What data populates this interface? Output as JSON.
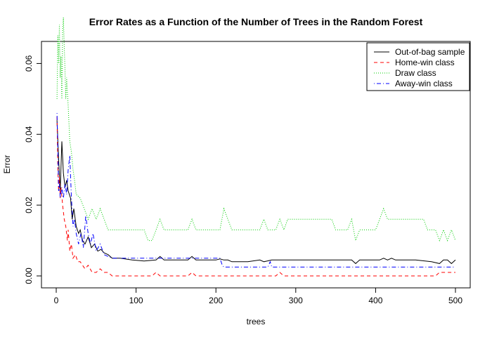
{
  "chart_data": {
    "type": "line",
    "title": "Error Rates as a Function of the Number of Trees in the Random Forest",
    "xlabel": "trees",
    "ylabel": "Error",
    "xlim": [
      0,
      500
    ],
    "ylim": [
      0,
      0.07
    ],
    "x_ticks": [
      0,
      100,
      200,
      300,
      400,
      500
    ],
    "x_tick_labels": [
      "0",
      "100",
      "200",
      "300",
      "400",
      "500"
    ],
    "y_ticks": [
      0,
      0.02,
      0.04,
      0.06
    ],
    "y_tick_labels": [
      "0.00",
      "0.02",
      "0.04",
      "0.06"
    ],
    "grid": false,
    "legend_position": "top-right",
    "series": [
      {
        "name": "Out-of-bag sample",
        "color": "#000000",
        "linestyle": "solid",
        "points": [
          [
            1,
            0.044
          ],
          [
            3,
            0.033
          ],
          [
            5,
            0.024
          ],
          [
            7,
            0.038
          ],
          [
            9,
            0.029
          ],
          [
            11,
            0.025
          ],
          [
            13,
            0.027
          ],
          [
            15,
            0.024
          ],
          [
            18,
            0.022
          ],
          [
            20,
            0.016
          ],
          [
            22,
            0.019
          ],
          [
            25,
            0.014
          ],
          [
            28,
            0.012
          ],
          [
            30,
            0.013
          ],
          [
            33,
            0.01
          ],
          [
            36,
            0.009
          ],
          [
            40,
            0.011
          ],
          [
            44,
            0.008
          ],
          [
            48,
            0.009
          ],
          [
            52,
            0.007
          ],
          [
            56,
            0.0075
          ],
          [
            60,
            0.0065
          ],
          [
            65,
            0.006
          ],
          [
            70,
            0.005
          ],
          [
            80,
            0.005
          ],
          [
            95,
            0.0045
          ],
          [
            110,
            0.0042
          ],
          [
            125,
            0.0045
          ],
          [
            130,
            0.0055
          ],
          [
            135,
            0.0045
          ],
          [
            150,
            0.0045
          ],
          [
            165,
            0.0045
          ],
          [
            170,
            0.0055
          ],
          [
            175,
            0.0045
          ],
          [
            200,
            0.0045
          ],
          [
            205,
            0.0048
          ],
          [
            210,
            0.0045
          ],
          [
            215,
            0.0045
          ],
          [
            220,
            0.004
          ],
          [
            240,
            0.004
          ],
          [
            255,
            0.0045
          ],
          [
            260,
            0.004
          ],
          [
            270,
            0.0045
          ],
          [
            280,
            0.0045
          ],
          [
            300,
            0.0045
          ],
          [
            340,
            0.0045
          ],
          [
            370,
            0.0045
          ],
          [
            375,
            0.0035
          ],
          [
            380,
            0.0045
          ],
          [
            405,
            0.0045
          ],
          [
            410,
            0.005
          ],
          [
            415,
            0.0045
          ],
          [
            420,
            0.005
          ],
          [
            425,
            0.0045
          ],
          [
            450,
            0.0045
          ],
          [
            470,
            0.004
          ],
          [
            480,
            0.0035
          ],
          [
            485,
            0.0045
          ],
          [
            490,
            0.0045
          ],
          [
            495,
            0.0035
          ],
          [
            500,
            0.0045
          ]
        ]
      },
      {
        "name": "Home-win class",
        "color": "#ff0000",
        "linestyle": "dashed",
        "points": [
          [
            1,
            0.045
          ],
          [
            2,
            0.03
          ],
          [
            3,
            0.024
          ],
          [
            4,
            0.028
          ],
          [
            5,
            0.022
          ],
          [
            6,
            0.025
          ],
          [
            8,
            0.02
          ],
          [
            10,
            0.016
          ],
          [
            12,
            0.014
          ],
          [
            14,
            0.01
          ],
          [
            15,
            0.013
          ],
          [
            17,
            0.007
          ],
          [
            19,
            0.009
          ],
          [
            21,
            0.005
          ],
          [
            24,
            0.006
          ],
          [
            27,
            0.004
          ],
          [
            30,
            0.004
          ],
          [
            33,
            0.003
          ],
          [
            36,
            0.002
          ],
          [
            40,
            0.003
          ],
          [
            45,
            0.001
          ],
          [
            50,
            0.001
          ],
          [
            55,
            0.002
          ],
          [
            60,
            0.001
          ],
          [
            65,
            0.001
          ],
          [
            70,
            0.0
          ],
          [
            120,
            0.0
          ],
          [
            125,
            0.001
          ],
          [
            130,
            0.0
          ],
          [
            165,
            0.0
          ],
          [
            170,
            0.001
          ],
          [
            175,
            0.0
          ],
          [
            275,
            0.0
          ],
          [
            280,
            0.001
          ],
          [
            285,
            0.0
          ],
          [
            475,
            0.0
          ],
          [
            480,
            0.001
          ],
          [
            500,
            0.001
          ]
        ]
      },
      {
        "name": "Draw class",
        "color": "#00cc00",
        "linestyle": "dotted",
        "points": [
          [
            1,
            0.05
          ],
          [
            2,
            0.068
          ],
          [
            3,
            0.06
          ],
          [
            4,
            0.071
          ],
          [
            5,
            0.056
          ],
          [
            6,
            0.062
          ],
          [
            7,
            0.05
          ],
          [
            8,
            0.069
          ],
          [
            9,
            0.073
          ],
          [
            10,
            0.065
          ],
          [
            11,
            0.058
          ],
          [
            12,
            0.05
          ],
          [
            13,
            0.056
          ],
          [
            15,
            0.048
          ],
          [
            17,
            0.038
          ],
          [
            19,
            0.035
          ],
          [
            21,
            0.03
          ],
          [
            23,
            0.027
          ],
          [
            25,
            0.023
          ],
          [
            30,
            0.022
          ],
          [
            35,
            0.019
          ],
          [
            40,
            0.016
          ],
          [
            45,
            0.019
          ],
          [
            50,
            0.016
          ],
          [
            55,
            0.019
          ],
          [
            60,
            0.016
          ],
          [
            65,
            0.013
          ],
          [
            110,
            0.013
          ],
          [
            115,
            0.01
          ],
          [
            120,
            0.01
          ],
          [
            125,
            0.013
          ],
          [
            130,
            0.016
          ],
          [
            135,
            0.013
          ],
          [
            165,
            0.013
          ],
          [
            170,
            0.016
          ],
          [
            175,
            0.013
          ],
          [
            205,
            0.013
          ],
          [
            210,
            0.019
          ],
          [
            215,
            0.016
          ],
          [
            220,
            0.013
          ],
          [
            255,
            0.013
          ],
          [
            260,
            0.016
          ],
          [
            265,
            0.013
          ],
          [
            275,
            0.013
          ],
          [
            280,
            0.016
          ],
          [
            285,
            0.013
          ],
          [
            290,
            0.016
          ],
          [
            345,
            0.016
          ],
          [
            350,
            0.013
          ],
          [
            365,
            0.013
          ],
          [
            370,
            0.016
          ],
          [
            375,
            0.01
          ],
          [
            380,
            0.013
          ],
          [
            400,
            0.013
          ],
          [
            405,
            0.016
          ],
          [
            410,
            0.019
          ],
          [
            415,
            0.016
          ],
          [
            460,
            0.016
          ],
          [
            465,
            0.013
          ],
          [
            475,
            0.013
          ],
          [
            480,
            0.01
          ],
          [
            485,
            0.013
          ],
          [
            490,
            0.01
          ],
          [
            495,
            0.013
          ],
          [
            500,
            0.01
          ]
        ]
      },
      {
        "name": "Away-win class",
        "color": "#0000ff",
        "linestyle": "dotdash",
        "points": [
          [
            1,
            0.046
          ],
          [
            2,
            0.036
          ],
          [
            3,
            0.024
          ],
          [
            4,
            0.026
          ],
          [
            5,
            0.022
          ],
          [
            7,
            0.025
          ],
          [
            9,
            0.022
          ],
          [
            11,
            0.026
          ],
          [
            13,
            0.023
          ],
          [
            15,
            0.03
          ],
          [
            17,
            0.034
          ],
          [
            19,
            0.022
          ],
          [
            21,
            0.014
          ],
          [
            23,
            0.016
          ],
          [
            25,
            0.012
          ],
          [
            28,
            0.009
          ],
          [
            31,
            0.012
          ],
          [
            34,
            0.008
          ],
          [
            37,
            0.017
          ],
          [
            40,
            0.012
          ],
          [
            43,
            0.009
          ],
          [
            46,
            0.012
          ],
          [
            50,
            0.007
          ],
          [
            55,
            0.009
          ],
          [
            60,
            0.006
          ],
          [
            65,
            0.0055
          ],
          [
            70,
            0.005
          ],
          [
            200,
            0.005
          ],
          [
            205,
            0.005
          ],
          [
            208,
            0.003
          ],
          [
            210,
            0.0025
          ],
          [
            265,
            0.0025
          ],
          [
            268,
            0.004
          ],
          [
            270,
            0.0025
          ],
          [
            500,
            0.0025
          ]
        ]
      }
    ]
  }
}
